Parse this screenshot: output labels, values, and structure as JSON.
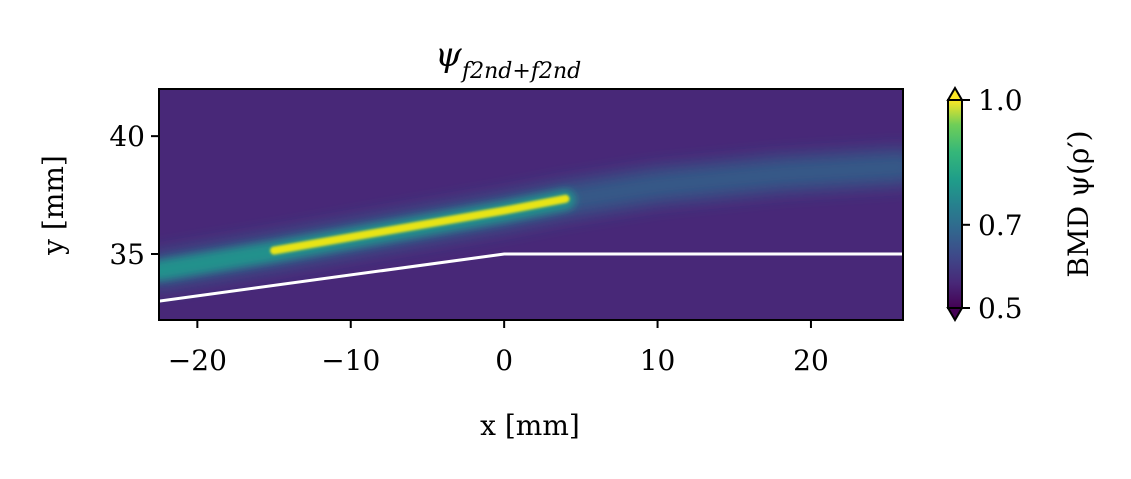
{
  "chart_data": {
    "type": "heatmap",
    "title": "ψ_{f2nd+f2nd}",
    "title_main": "ψ",
    "title_subscript": "f2nd+f2nd",
    "xlabel": "x [mm]",
    "ylabel": "y [mm]",
    "xlim": [
      -22.5,
      26
    ],
    "ylim": [
      32.2,
      42
    ],
    "xticks": [
      -20,
      -10,
      0,
      10,
      20
    ],
    "xtick_labels": [
      "−20",
      "−10",
      "0",
      "10",
      "20"
    ],
    "yticks": [
      35,
      40
    ],
    "ytick_labels": [
      "35",
      "40"
    ],
    "colorbar": {
      "label": "BMD ψ(ρ′)",
      "range": [
        0.5,
        1.0
      ],
      "ticks": [
        0.5,
        0.7,
        1.0
      ],
      "tick_labels": [
        "0.5",
        "0.7",
        "1.0"
      ],
      "colormap": "viridis",
      "extend": "both"
    },
    "boundary_line": {
      "name": "wall profile",
      "color": "#ffffff",
      "x": [
        -22.5,
        0,
        26
      ],
      "y": [
        33.0,
        35.0,
        35.0
      ]
    },
    "spray_band": {
      "description_value": "density concentrated along curved jet",
      "center_x": [
        -22.5,
        -15,
        -8,
        0,
        4,
        10,
        18,
        26
      ],
      "center_y": [
        34.3,
        35.1,
        35.9,
        36.8,
        37.3,
        37.9,
        38.4,
        38.7
      ],
      "peak_x_range": [
        -15,
        3.5
      ],
      "peak_value": 1.0,
      "background_value": 0.5
    },
    "colors": {
      "background": "#482878",
      "peak": "#e8e419",
      "mid": "#21918c"
    }
  }
}
